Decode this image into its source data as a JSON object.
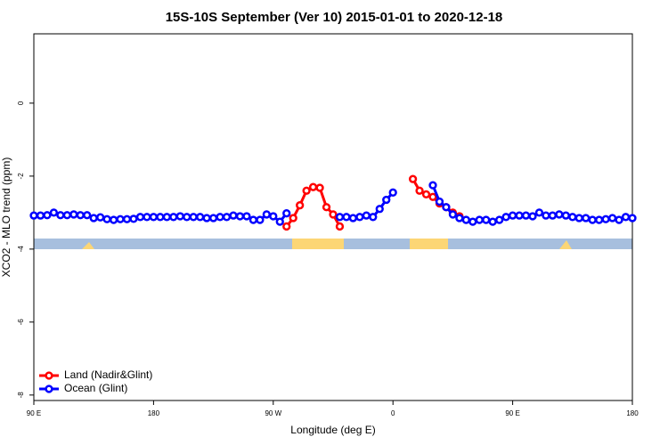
{
  "chart_data": {
    "type": "line",
    "title": "15S-10S September (Ver 10)   2015-01-01 to 2020-12-18",
    "x_label": "Longitude (deg E)",
    "y_label": "XCO2 - MLO trend (ppm)",
    "xlim": [
      90,
      540
    ],
    "xticks": [
      {
        "value": 90,
        "label": "90 E"
      },
      180,
      {
        "value": 270,
        "label": "90 W"
      },
      {
        "value": 360,
        "label": "0"
      },
      {
        "value": 450,
        "label": "90 E"
      },
      {
        "value": 540,
        "label": "180"
      }
    ],
    "ylim": [
      -8.15,
      1.9
    ],
    "yticks": [
      0,
      -2,
      -4,
      -6,
      -8
    ],
    "legend": "bottom-left",
    "series": [
      {
        "name": "Land (Nadir&Glint)",
        "color": "#ff0000",
        "x": [
          280,
          285,
          290,
          295,
          300,
          305,
          310,
          315,
          320,
          null,
          375,
          380,
          385,
          390,
          395,
          400,
          405,
          410
        ],
        "values": [
          -3.38,
          -3.15,
          -2.8,
          -2.4,
          -2.3,
          -2.32,
          -2.85,
          -3.05,
          -3.38,
          null,
          -2.08,
          -2.4,
          -2.5,
          -2.57,
          -2.75,
          -2.85,
          -3.0,
          -3.1
        ]
      },
      {
        "name": "Ocean (Glint)",
        "color": "#0000ff",
        "x": [
          90,
          95,
          100,
          105,
          110,
          115,
          120,
          125,
          130,
          135,
          140,
          145,
          150,
          155,
          160,
          165,
          170,
          175,
          180,
          185,
          190,
          195,
          200,
          205,
          210,
          215,
          220,
          225,
          230,
          235,
          240,
          245,
          250,
          255,
          260,
          265,
          270,
          275,
          280,
          null,
          320,
          325,
          330,
          335,
          340,
          345,
          350,
          355,
          360,
          null,
          390,
          395,
          400,
          405,
          410,
          415,
          420,
          425,
          430,
          435,
          440,
          445,
          450,
          455,
          460,
          465,
          470,
          475,
          480,
          485,
          490,
          495,
          500,
          505,
          510,
          515,
          520,
          525,
          530,
          535,
          540
        ],
        "values": [
          -3.08,
          -3.08,
          -3.07,
          -3.0,
          -3.07,
          -3.07,
          -3.05,
          -3.07,
          -3.07,
          -3.15,
          -3.13,
          -3.18,
          -3.2,
          -3.18,
          -3.18,
          -3.17,
          -3.12,
          -3.12,
          -3.12,
          -3.12,
          -3.12,
          -3.12,
          -3.1,
          -3.12,
          -3.12,
          -3.12,
          -3.15,
          -3.15,
          -3.12,
          -3.12,
          -3.08,
          -3.1,
          -3.1,
          -3.2,
          -3.2,
          -3.05,
          -3.1,
          -3.25,
          -3.02,
          null,
          -3.12,
          -3.12,
          -3.15,
          -3.12,
          -3.08,
          -3.12,
          -2.9,
          -2.65,
          -2.45,
          null,
          -2.25,
          -2.7,
          -2.85,
          -3.05,
          -3.15,
          -3.2,
          -3.25,
          -3.2,
          -3.2,
          -3.25,
          -3.2,
          -3.12,
          -3.08,
          -3.08,
          -3.08,
          -3.1,
          -3.0,
          -3.08,
          -3.08,
          -3.05,
          -3.08,
          -3.12,
          -3.15,
          -3.15,
          -3.2,
          -3.2,
          -3.18,
          -3.15,
          -3.2,
          -3.12,
          -3.15
        ]
      }
    ]
  }
}
